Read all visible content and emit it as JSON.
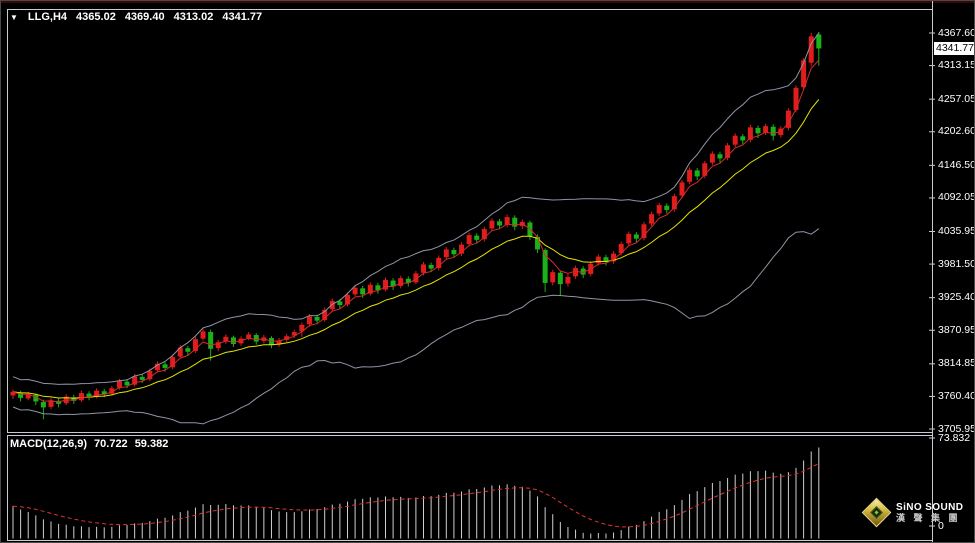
{
  "header": {
    "collapse_glyph": "▼",
    "symbol_timeframe": "LLG,H4",
    "open": "4365.02",
    "high": "4369.40",
    "low": "4313.02",
    "close": "4341.77"
  },
  "price_axis": {
    "current_price_label": "4341.77",
    "ticks": [
      {
        "label": "4367.60",
        "price": 4367.6
      },
      {
        "label": "4313.15",
        "price": 4313.15
      },
      {
        "label": "4257.05",
        "price": 4257.05
      },
      {
        "label": "4202.60",
        "price": 4202.6
      },
      {
        "label": "4146.50",
        "price": 4146.5
      },
      {
        "label": "4092.05",
        "price": 4092.05
      },
      {
        "label": "4035.95",
        "price": 4035.95
      },
      {
        "label": "3981.50",
        "price": 3981.5
      },
      {
        "label": "3925.40",
        "price": 3925.4
      },
      {
        "label": "3870.95",
        "price": 3870.95
      },
      {
        "label": "3814.85",
        "price": 3814.85
      },
      {
        "label": "3760.40",
        "price": 3760.4
      },
      {
        "label": "3705.95",
        "price": 3705.95
      }
    ]
  },
  "macd_panel": {
    "label": "MACD(12,26,9)",
    "macd_value": "70.722",
    "signal_value": "59.382",
    "axis_max_label": "73.832",
    "axis_zero_label": "0"
  },
  "logo": {
    "line1": "SiNO SOUND",
    "line2": "漢 聲 集 團"
  },
  "colors": {
    "bull_candle": "#e01c1c",
    "bear_candle": "#19b219",
    "band_line": "#8e95a5",
    "yellow_ma": "#e3e300",
    "red_ma": "#d22c2c",
    "macd_bar": "#d0d0d0",
    "macd_signal": "#e33030",
    "axis_text": "#ffffff",
    "panel_border": "#c6cad1",
    "background": "#000000"
  },
  "chart_data": {
    "type": "candlestick",
    "symbol": "LLG",
    "timeframe": "H4",
    "title": "LLG,H4 4365.02 4369.40 4313.02 4341.77",
    "current_bar": {
      "open": 4365.02,
      "high": 4369.4,
      "low": 4313.02,
      "close": 4341.77
    },
    "y_axis_range": [
      3701,
      4404
    ],
    "grid": false,
    "candles": [
      [
        3762,
        3772,
        3756,
        3768
      ],
      [
        3767,
        3770,
        3752,
        3758
      ],
      [
        3757,
        3768,
        3754,
        3764
      ],
      [
        3763,
        3765,
        3746,
        3752
      ],
      [
        3751,
        3755,
        3722,
        3742
      ],
      [
        3743,
        3758,
        3739,
        3754
      ],
      [
        3753,
        3757,
        3742,
        3748
      ],
      [
        3749,
        3764,
        3746,
        3760
      ],
      [
        3759,
        3763,
        3748,
        3753
      ],
      [
        3754,
        3770,
        3751,
        3766
      ],
      [
        3765,
        3769,
        3754,
        3759
      ],
      [
        3760,
        3774,
        3757,
        3770
      ],
      [
        3769,
        3773,
        3759,
        3764
      ],
      [
        3765,
        3778,
        3762,
        3774
      ],
      [
        3775,
        3790,
        3772,
        3786
      ],
      [
        3785,
        3789,
        3774,
        3779
      ],
      [
        3780,
        3798,
        3777,
        3794
      ],
      [
        3793,
        3797,
        3783,
        3788
      ],
      [
        3789,
        3807,
        3786,
        3803
      ],
      [
        3804,
        3819,
        3801,
        3815
      ],
      [
        3814,
        3818,
        3802,
        3808
      ],
      [
        3809,
        3830,
        3806,
        3826
      ],
      [
        3827,
        3846,
        3824,
        3842
      ],
      [
        3841,
        3845,
        3829,
        3835
      ],
      [
        3836,
        3860,
        3833,
        3856
      ],
      [
        3857,
        3874,
        3854,
        3869
      ],
      [
        3868,
        3872,
        3820,
        3840
      ],
      [
        3841,
        3855,
        3836,
        3851
      ],
      [
        3852,
        3864,
        3848,
        3860
      ],
      [
        3859,
        3862,
        3843,
        3848
      ],
      [
        3849,
        3861,
        3845,
        3857
      ],
      [
        3858,
        3868,
        3854,
        3864
      ],
      [
        3863,
        3866,
        3847,
        3852
      ],
      [
        3853,
        3863,
        3849,
        3859
      ],
      [
        3858,
        3861,
        3841,
        3846
      ],
      [
        3847,
        3858,
        3843,
        3854
      ],
      [
        3855,
        3865,
        3851,
        3861
      ],
      [
        3862,
        3872,
        3858,
        3868
      ],
      [
        3869,
        3884,
        3860,
        3880
      ],
      [
        3881,
        3898,
        3877,
        3894
      ],
      [
        3893,
        3897,
        3881,
        3887
      ],
      [
        3888,
        3909,
        3885,
        3905
      ],
      [
        3906,
        3924,
        3902,
        3920
      ],
      [
        3919,
        3923,
        3906,
        3913
      ],
      [
        3914,
        3934,
        3911,
        3930
      ],
      [
        3931,
        3946,
        3928,
        3942
      ],
      [
        3941,
        3945,
        3925,
        3931
      ],
      [
        3932,
        3951,
        3929,
        3947
      ],
      [
        3946,
        3950,
        3932,
        3938
      ],
      [
        3939,
        3959,
        3936,
        3955
      ],
      [
        3954,
        3958,
        3938,
        3944
      ],
      [
        3945,
        3962,
        3941,
        3958
      ],
      [
        3957,
        3961,
        3944,
        3950
      ],
      [
        3951,
        3970,
        3948,
        3966
      ],
      [
        3967,
        3985,
        3963,
        3981
      ],
      [
        3980,
        3984,
        3968,
        3974
      ],
      [
        3975,
        3996,
        3971,
        3992
      ],
      [
        3993,
        4010,
        3989,
        4006
      ],
      [
        4005,
        4009,
        3992,
        3998
      ],
      [
        3999,
        4018,
        3995,
        4014
      ],
      [
        4015,
        4034,
        4011,
        4030
      ],
      [
        4029,
        4033,
        4016,
        4022
      ],
      [
        4023,
        4044,
        4019,
        4040
      ],
      [
        4041,
        4058,
        4037,
        4054
      ],
      [
        4053,
        4057,
        4040,
        4046
      ],
      [
        4047,
        4064,
        4043,
        4060
      ],
      [
        4059,
        4063,
        4038,
        4044
      ],
      [
        4045,
        4056,
        4040,
        4052
      ],
      [
        4051,
        4054,
        4022,
        4028
      ],
      [
        4027,
        4031,
        4000,
        4006
      ],
      [
        4005,
        4008,
        3935,
        3950
      ],
      [
        3951,
        3972,
        3946,
        3968
      ],
      [
        3967,
        3970,
        3928,
        3948
      ],
      [
        3949,
        3965,
        3944,
        3960
      ],
      [
        3961,
        3979,
        3957,
        3975
      ],
      [
        3974,
        3978,
        3958,
        3964
      ],
      [
        3965,
        3986,
        3961,
        3982
      ],
      [
        3983,
        3998,
        3979,
        3994
      ],
      [
        3993,
        3997,
        3979,
        3985
      ],
      [
        3986,
        4003,
        3982,
        3999
      ],
      [
        4000,
        4019,
        3996,
        4015
      ],
      [
        4016,
        4036,
        4012,
        4032
      ],
      [
        4031,
        4035,
        4018,
        4024
      ],
      [
        4025,
        4052,
        4021,
        4048
      ],
      [
        4049,
        4069,
        4045,
        4065
      ],
      [
        4066,
        4084,
        4062,
        4080
      ],
      [
        4079,
        4083,
        4066,
        4072
      ],
      [
        4073,
        4099,
        4069,
        4095
      ],
      [
        4096,
        4122,
        4092,
        4118
      ],
      [
        4119,
        4143,
        4115,
        4139
      ],
      [
        4138,
        4142,
        4122,
        4128
      ],
      [
        4129,
        4154,
        4125,
        4150
      ],
      [
        4151,
        4170,
        4147,
        4166
      ],
      [
        4165,
        4169,
        4151,
        4158
      ],
      [
        4159,
        4184,
        4155,
        4180
      ],
      [
        4181,
        4200,
        4177,
        4196
      ],
      [
        4195,
        4199,
        4182,
        4188
      ],
      [
        4189,
        4214,
        4185,
        4210
      ],
      [
        4209,
        4213,
        4192,
        4200
      ],
      [
        4201,
        4216,
        4197,
        4212
      ],
      [
        4211,
        4215,
        4188,
        4196
      ],
      [
        4197,
        4212,
        4193,
        4208
      ],
      [
        4209,
        4242,
        4205,
        4238
      ],
      [
        4239,
        4280,
        4235,
        4276
      ],
      [
        4277,
        4326,
        4273,
        4322
      ],
      [
        4318,
        4368,
        4312,
        4362
      ],
      [
        4365.02,
        4369.4,
        4313.02,
        4341.77
      ]
    ],
    "macd": {
      "fast": 12,
      "slow": 26,
      "signal_period": 9,
      "current_macd": 70.722,
      "current_signal": 59.382,
      "scale_max": 73.832,
      "scale_min": 0
    }
  }
}
